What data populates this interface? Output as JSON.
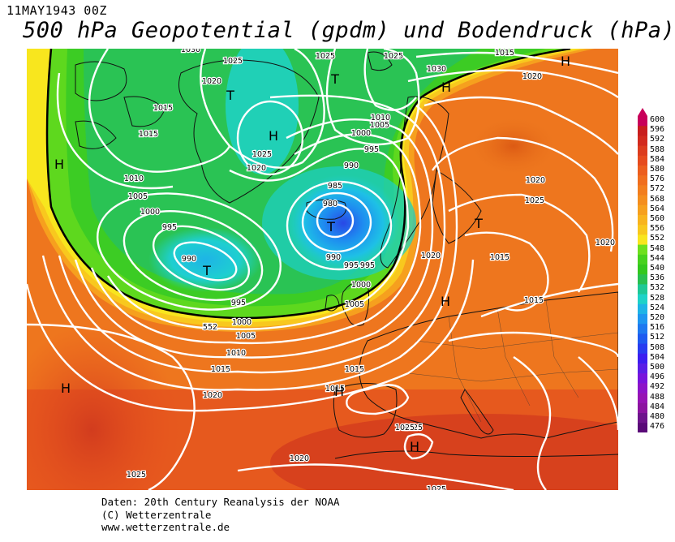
{
  "header": {
    "date_label": "11MAY1943 00Z",
    "title": "500 hPa Geopotential (gpdm) und Bodendruck (hPa)"
  },
  "legend": {
    "levels": [
      "600",
      "596",
      "592",
      "588",
      "584",
      "580",
      "576",
      "572",
      "568",
      "564",
      "560",
      "556",
      "552",
      "548",
      "544",
      "540",
      "536",
      "532",
      "528",
      "524",
      "520",
      "516",
      "512",
      "508",
      "504",
      "500",
      "496",
      "492",
      "488",
      "484",
      "480",
      "476"
    ],
    "colors": [
      "#c8005a",
      "#c81e1e",
      "#d22a1e",
      "#dc3c1e",
      "#e64b1e",
      "#ec5e1e",
      "#f06e1e",
      "#f27e1e",
      "#f48e1e",
      "#f6a01e",
      "#f8b41e",
      "#f8c81e",
      "#f8e61e",
      "#6ee01e",
      "#46d21e",
      "#32c81e",
      "#28c050",
      "#1ec896",
      "#1ed2c8",
      "#1eb4e6",
      "#1e96f0",
      "#1e78f0",
      "#1e5af0",
      "#283cf0",
      "#3c1ef0",
      "#5a1ee6",
      "#7814dc",
      "#8c14c8",
      "#9614b4",
      "#8c14a0",
      "#6e148c",
      "#5a0a78"
    ]
  },
  "map": {
    "pressure_labels": [
      {
        "t": "1030"
      },
      {
        "t": "1025"
      },
      {
        "t": "1020"
      },
      {
        "t": "1025"
      },
      {
        "t": "1015"
      },
      {
        "t": "1015"
      },
      {
        "t": "1025"
      },
      {
        "t": "1020"
      },
      {
        "t": "1010"
      },
      {
        "t": "1005"
      },
      {
        "t": "1000"
      },
      {
        "t": "995"
      },
      {
        "t": "990"
      },
      {
        "t": "995"
      },
      {
        "t": "1000"
      },
      {
        "t": "1005"
      },
      {
        "t": "1010"
      },
      {
        "t": "1015"
      },
      {
        "t": "1020"
      },
      {
        "t": "1025"
      },
      {
        "t": "1030"
      },
      {
        "t": "1025"
      },
      {
        "t": "1020"
      },
      {
        "t": "1015"
      },
      {
        "t": "1010"
      },
      {
        "t": "1005"
      },
      {
        "t": "1000"
      },
      {
        "t": "995"
      },
      {
        "t": "990"
      },
      {
        "t": "985"
      },
      {
        "t": "980"
      },
      {
        "t": "990"
      },
      {
        "t": "995"
      },
      {
        "t": "995"
      },
      {
        "t": "1000"
      },
      {
        "t": "1005"
      },
      {
        "t": "1015"
      },
      {
        "t": "1020"
      },
      {
        "t": "1025"
      },
      {
        "t": "1020"
      },
      {
        "t": "1015"
      },
      {
        "t": "1015"
      },
      {
        "t": "1020"
      },
      {
        "t": "1015"
      },
      {
        "t": "1025"
      },
      {
        "t": "1025"
      },
      {
        "t": "1020"
      },
      {
        "t": "1025"
      },
      {
        "t": "552"
      }
    ],
    "pressure_centers": [
      {
        "t": "H"
      },
      {
        "t": "T"
      },
      {
        "t": "T"
      },
      {
        "t": "H"
      },
      {
        "t": "T"
      },
      {
        "t": "T"
      },
      {
        "t": "H"
      },
      {
        "t": "H"
      },
      {
        "t": "T"
      },
      {
        "t": "H"
      },
      {
        "t": "H"
      },
      {
        "t": "H"
      },
      {
        "t": "H"
      }
    ]
  },
  "footer": {
    "line1": "Daten: 20th Century Reanalysis der NOAA",
    "line2": "(C) Wetterzentrale",
    "line3": "www.wetterzentrale.de"
  }
}
